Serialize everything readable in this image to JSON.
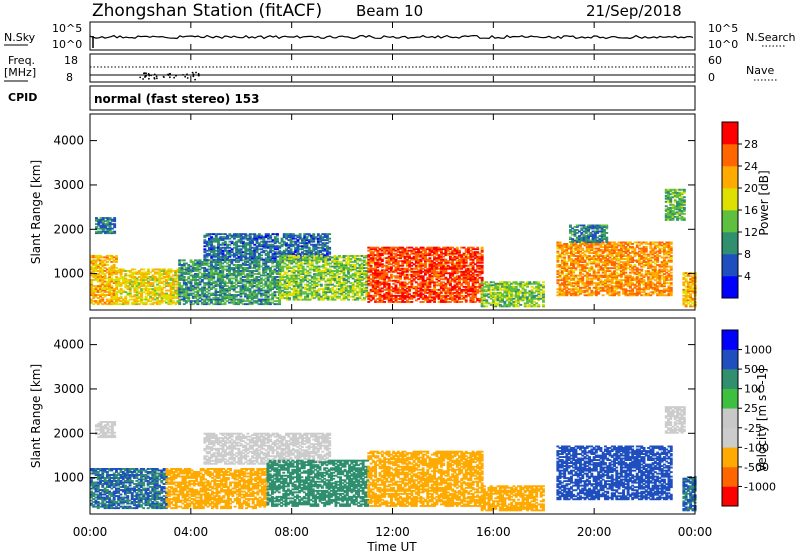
{
  "header": {
    "station": "Zhongshan Station (fitACF)",
    "beam": "Beam 10",
    "date": "21/Sep/2018"
  },
  "noise_panel": {
    "left_label": "N.Sky",
    "right_label": "N.Search",
    "left_ticks": [
      "10^5",
      "10^0"
    ],
    "right_ticks": [
      "10^5",
      "10^0"
    ]
  },
  "freq_panel": {
    "left_label_1": "Freq.",
    "left_label_2": "[MHz]",
    "right_label": "Nave",
    "left_ticks": [
      "18",
      "8"
    ],
    "right_ticks": [
      "60",
      "0"
    ]
  },
  "cpid": {
    "label": "CPID",
    "text": "normal (fast stereo) 153"
  },
  "x_axis": {
    "label": "Time UT",
    "ticks": [
      "00:00",
      "04:00",
      "08:00",
      "12:00",
      "16:00",
      "20:00",
      "00:00"
    ]
  },
  "colors": {
    "power": [
      "#0000ff",
      "#1f4fbf",
      "#2f8f6f",
      "#5fbf3f",
      "#dfdf00",
      "#ffaa00",
      "#ff6600",
      "#ff0000"
    ],
    "velocity": [
      "#ff0000",
      "#ff6600",
      "#ffaa00",
      "#cccccc",
      "#c8c8c8",
      "#3fbf3f",
      "#2f8f6f",
      "#1f4fbf",
      "#0000ff"
    ]
  },
  "chart_data": [
    {
      "type": "heatmap",
      "name": "Power",
      "xlabel": "Time UT",
      "ylabel": "Slant Range [km]",
      "ylim": [
        180,
        4600
      ],
      "xlim_hours": [
        0,
        24
      ],
      "yticks": [
        "1000",
        "2000",
        "3000",
        "4000"
      ],
      "colorbar": {
        "label": "Power [dB]",
        "ticks": [
          "4",
          "8",
          "12",
          "16",
          "20",
          "24",
          "28"
        ],
        "range": [
          0,
          30
        ]
      },
      "regions": [
        {
          "t0": 0.0,
          "t1": 1.0,
          "r0": 300,
          "r1": 1400,
          "value": 20
        },
        {
          "t0": 0.2,
          "t1": 1.0,
          "r0": 1900,
          "r1": 2250,
          "value": 8
        },
        {
          "t0": 1.0,
          "t1": 3.5,
          "r0": 300,
          "r1": 1100,
          "value": 18
        },
        {
          "t0": 3.5,
          "t1": 7.5,
          "r0": 300,
          "r1": 1300,
          "value": 10
        },
        {
          "t0": 4.5,
          "t1": 9.5,
          "r0": 1300,
          "r1": 1900,
          "value": 7
        },
        {
          "t0": 7.5,
          "t1": 11.0,
          "r0": 400,
          "r1": 1400,
          "value": 14
        },
        {
          "t0": 11.0,
          "t1": 15.5,
          "r0": 350,
          "r1": 1600,
          "value": 26
        },
        {
          "t0": 15.5,
          "t1": 18.0,
          "r0": 250,
          "r1": 800,
          "value": 14
        },
        {
          "t0": 18.5,
          "t1": 23.0,
          "r0": 500,
          "r1": 1700,
          "value": 22
        },
        {
          "t0": 19.0,
          "t1": 20.5,
          "r0": 1700,
          "r1": 2100,
          "value": 8
        },
        {
          "t0": 22.8,
          "t1": 23.6,
          "r0": 2200,
          "r1": 2900,
          "value": 12
        },
        {
          "t0": 23.5,
          "t1": 24.0,
          "r0": 250,
          "r1": 1000,
          "value": 20
        }
      ]
    },
    {
      "type": "heatmap",
      "name": "Velocity",
      "xlabel": "Time UT",
      "ylabel": "Slant Range [km]",
      "ylim": [
        180,
        4600
      ],
      "xlim_hours": [
        0,
        24
      ],
      "yticks": [
        "1000",
        "2000",
        "3000",
        "4000"
      ],
      "colorbar": {
        "label": "Velocity [m s^-1]",
        "ticks": [
          "1000",
          "500",
          "100",
          "25",
          "-25",
          "-100",
          "-500",
          "-1000"
        ]
      },
      "regions": [
        {
          "t0": 0.0,
          "t1": 3.0,
          "r0": 300,
          "r1": 1200,
          "value": 300
        },
        {
          "t0": 0.2,
          "t1": 1.0,
          "r0": 1900,
          "r1": 2250,
          "value": 0
        },
        {
          "t0": 3.0,
          "t1": 7.0,
          "r0": 300,
          "r1": 1200,
          "value": -150
        },
        {
          "t0": 4.5,
          "t1": 9.5,
          "r0": 1300,
          "r1": 2000,
          "value": 0
        },
        {
          "t0": 7.0,
          "t1": 11.0,
          "r0": 350,
          "r1": 1400,
          "value": 200
        },
        {
          "t0": 11.0,
          "t1": 15.5,
          "r0": 350,
          "r1": 1600,
          "value": -120
        },
        {
          "t0": 15.5,
          "t1": 18.0,
          "r0": 250,
          "r1": 800,
          "value": -200
        },
        {
          "t0": 18.5,
          "t1": 23.0,
          "r0": 500,
          "r1": 1700,
          "value": 400
        },
        {
          "t0": 22.8,
          "t1": 23.6,
          "r0": 2000,
          "r1": 2600,
          "value": 0
        },
        {
          "t0": 23.5,
          "t1": 24.0,
          "r0": 250,
          "r1": 1000,
          "value": 300
        }
      ]
    }
  ]
}
